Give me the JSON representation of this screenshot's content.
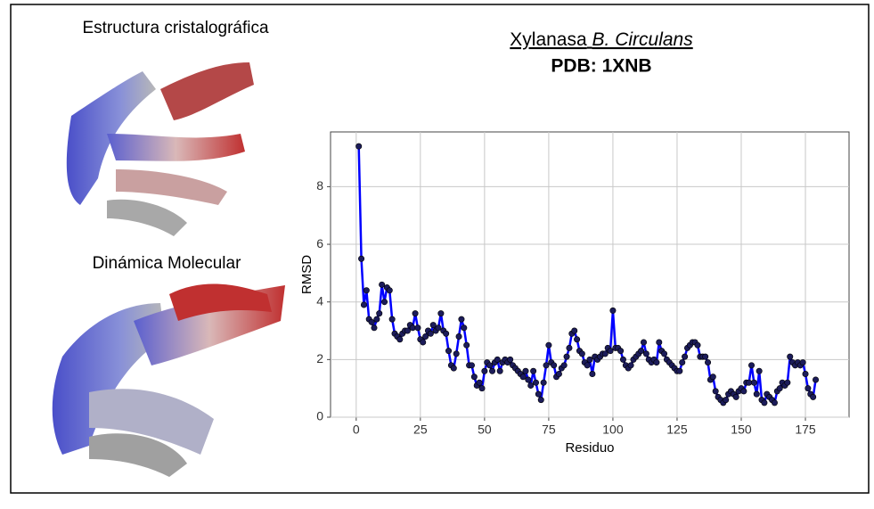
{
  "labels": {
    "crystal": "Estructura cristalográfica",
    "md": "Dinámica Molecular"
  },
  "chart_data": {
    "type": "line",
    "title": "Xylanasa",
    "title_italic": "B. Circulans",
    "subtitle": "PDB: 1XNB",
    "x_label": "Residuo",
    "y_label": "RMSD",
    "xlim": [
      -10,
      192
    ],
    "ylim": [
      0,
      9.9
    ],
    "xticks": [
      0,
      25,
      50,
      75,
      100,
      125,
      150,
      175
    ],
    "yticks": [
      0,
      2,
      4,
      6,
      8
    ],
    "grid": true,
    "x": [
      1,
      2,
      3,
      4,
      5,
      6,
      7,
      8,
      9,
      10,
      11,
      12,
      13,
      14,
      15,
      16,
      17,
      18,
      19,
      20,
      21,
      22,
      23,
      24,
      25,
      26,
      27,
      28,
      29,
      30,
      31,
      32,
      33,
      34,
      35,
      36,
      37,
      38,
      39,
      40,
      41,
      42,
      43,
      44,
      45,
      46,
      47,
      48,
      49,
      50,
      51,
      52,
      53,
      54,
      55,
      56,
      57,
      58,
      59,
      60,
      61,
      62,
      63,
      64,
      65,
      66,
      67,
      68,
      69,
      70,
      71,
      72,
      73,
      74,
      75,
      76,
      77,
      78,
      79,
      80,
      81,
      82,
      83,
      84,
      85,
      86,
      87,
      88,
      89,
      90,
      91,
      92,
      93,
      94,
      95,
      96,
      97,
      98,
      99,
      100,
      101,
      102,
      103,
      104,
      105,
      106,
      107,
      108,
      109,
      110,
      111,
      112,
      113,
      114,
      115,
      116,
      117,
      118,
      119,
      120,
      121,
      122,
      123,
      124,
      125,
      126,
      127,
      128,
      129,
      130,
      131,
      132,
      133,
      134,
      135,
      136,
      137,
      138,
      139,
      140,
      141,
      142,
      143,
      144,
      145,
      146,
      147,
      148,
      149,
      150,
      151,
      152,
      153,
      154,
      155,
      156,
      157,
      158,
      159,
      160,
      161,
      162,
      163,
      164,
      165,
      166,
      167,
      168,
      169,
      170,
      171,
      172,
      173,
      174,
      175,
      176,
      177,
      178,
      179
    ],
    "series": [
      {
        "color": "#0000ff",
        "marker_color": "#1c1c5a",
        "values": [
          9.4,
          5.5,
          3.9,
          4.4,
          3.4,
          3.3,
          3.1,
          3.4,
          3.6,
          4.6,
          4.0,
          4.5,
          4.4,
          3.4,
          2.9,
          2.8,
          2.7,
          2.9,
          3.0,
          3.0,
          3.2,
          3.1,
          3.6,
          3.1,
          2.7,
          2.6,
          2.8,
          3.0,
          2.9,
          3.2,
          3.0,
          3.1,
          3.6,
          3.0,
          2.9,
          2.3,
          1.8,
          1.7,
          2.2,
          2.8,
          3.4,
          3.1,
          2.5,
          1.8,
          1.8,
          1.4,
          1.1,
          1.2,
          1.0,
          1.6,
          1.9,
          1.8,
          1.6,
          1.9,
          2.0,
          1.6,
          1.9,
          2.0,
          1.9,
          2.0,
          1.8,
          1.7,
          1.6,
          1.5,
          1.4,
          1.6,
          1.3,
          1.1,
          1.6,
          1.2,
          0.8,
          0.6,
          1.2,
          1.8,
          2.5,
          1.9,
          1.8,
          1.4,
          1.5,
          1.7,
          1.8,
          2.1,
          2.4,
          2.9,
          3.0,
          2.7,
          2.3,
          2.2,
          1.9,
          1.8,
          2.0,
          1.5,
          2.1,
          2.0,
          2.1,
          2.2,
          2.2,
          2.4,
          2.3,
          3.7,
          2.4,
          2.4,
          2.3,
          2.0,
          1.8,
          1.7,
          1.8,
          2.0,
          2.1,
          2.2,
          2.3,
          2.6,
          2.2,
          2.0,
          1.9,
          2.0,
          1.9,
          2.6,
          2.3,
          2.2,
          2.0,
          1.9,
          1.8,
          1.7,
          1.6,
          1.6,
          1.9,
          2.1,
          2.4,
          2.5,
          2.6,
          2.6,
          2.5,
          2.1,
          2.1,
          2.1,
          1.9,
          1.3,
          1.4,
          0.9,
          0.7,
          0.6,
          0.5,
          0.6,
          0.8,
          0.9,
          0.8,
          0.7,
          0.9,
          1.0,
          0.9,
          1.2,
          1.2,
          1.8,
          1.2,
          0.8,
          1.6,
          0.6,
          0.5,
          0.8,
          0.7,
          0.6,
          0.5,
          0.9,
          1.0,
          1.2,
          1.1,
          1.2,
          2.1,
          1.9,
          1.8,
          1.9,
          1.8,
          1.9,
          1.5,
          1.0,
          0.8,
          0.7,
          1.3
        ]
      }
    ]
  }
}
